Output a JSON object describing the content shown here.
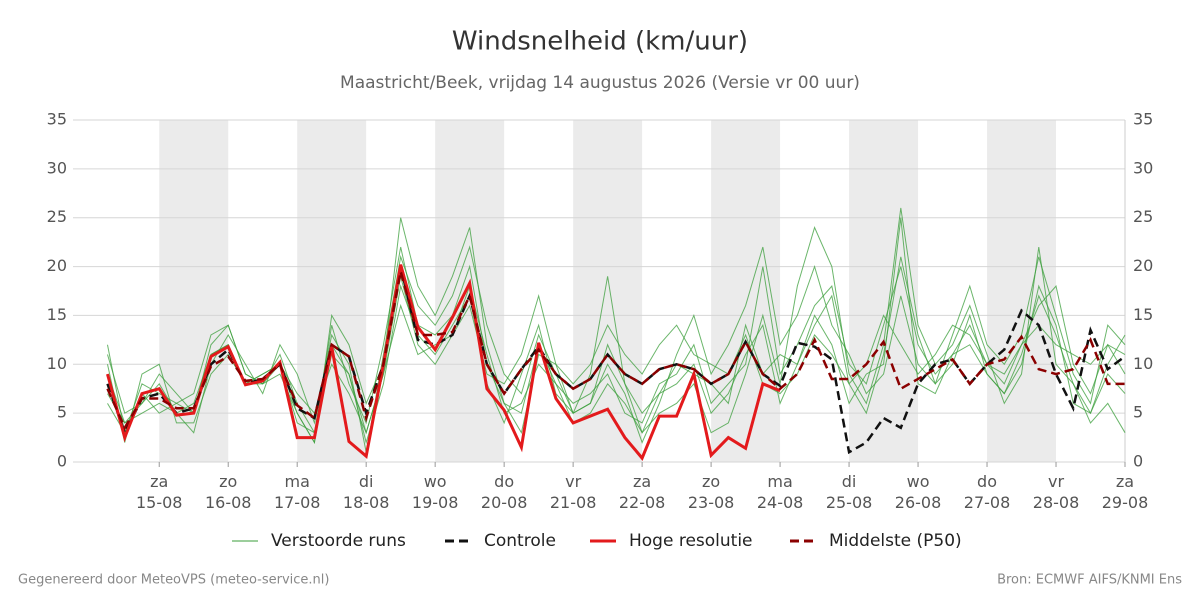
{
  "chart_data": {
    "type": "line",
    "title": "Windsnelheid (km/uur)",
    "subtitle": "Maastricht/Beek, vrijdag 14 augustus 2026 (Versie vr 00 uur)",
    "footer_left": "Gegenereerd door MeteoVPS (meteo-service.nl)",
    "footer_right": "Bron: ECMWF AIFS/KNMI Ens",
    "x": [
      14.25,
      14.5,
      14.75,
      15,
      15.25,
      15.5,
      15.75,
      16,
      16.25,
      16.5,
      16.75,
      17,
      17.25,
      17.5,
      17.75,
      18,
      18.25,
      18.5,
      18.75,
      19,
      19.25,
      19.5,
      19.75,
      20,
      20.25,
      20.5,
      20.75,
      21,
      21.25,
      21.5,
      21.75,
      22,
      22.25,
      22.5,
      22.75,
      23,
      23.25,
      23.5,
      23.75,
      24,
      24.25,
      24.5,
      24.75,
      25,
      25.25,
      25.5,
      25.75,
      26,
      26.25,
      26.5,
      26.75,
      27,
      27.25,
      27.5,
      27.75,
      28,
      28.25,
      28.5,
      28.75,
      29
    ],
    "xlim": [
      13.75,
      29
    ],
    "xticks": [
      {
        "value": 15,
        "label": "za\n15-08"
      },
      {
        "value": 16,
        "label": "zo\n16-08"
      },
      {
        "value": 17,
        "label": "ma\n17-08"
      },
      {
        "value": 18,
        "label": "di\n18-08"
      },
      {
        "value": 19,
        "label": "wo\n19-08"
      },
      {
        "value": 20,
        "label": "do\n20-08"
      },
      {
        "value": 21,
        "label": "vr\n21-08"
      },
      {
        "value": 22,
        "label": "za\n22-08"
      },
      {
        "value": 23,
        "label": "zo\n23-08"
      },
      {
        "value": 24,
        "label": "ma\n24-08"
      },
      {
        "value": 25,
        "label": "di\n25-08"
      },
      {
        "value": 26,
        "label": "wo\n26-08"
      },
      {
        "value": 27,
        "label": "do\n27-08"
      },
      {
        "value": 28,
        "label": "vr\n28-08"
      },
      {
        "value": 29,
        "label": "za\n29-08"
      }
    ],
    "ylim": [
      0,
      35
    ],
    "yticks": [
      0,
      5,
      10,
      15,
      20,
      25,
      30,
      35
    ],
    "grid": true,
    "ensemble": {
      "name": "Verstoorde runs",
      "color": "#3a9d3a",
      "members": [
        [
          12,
          3,
          8,
          7,
          6,
          5,
          12,
          14,
          9,
          8,
          11,
          6,
          3,
          14,
          8,
          4,
          12,
          22,
          14,
          13,
          15,
          20,
          10,
          6,
          5,
          12,
          8,
          6,
          7,
          9,
          5,
          4,
          8,
          9,
          12,
          6,
          8,
          10,
          20,
          9,
          12,
          16,
          18,
          10,
          8,
          14,
          20,
          12,
          9,
          11,
          14,
          10,
          8,
          12,
          16,
          18,
          10,
          7,
          12,
          9
        ],
        [
          7,
          4,
          6,
          8,
          5,
          6,
          11,
          12,
          8,
          9,
          10,
          4,
          3,
          11,
          9,
          2,
          8,
          18,
          13,
          11,
          14,
          17,
          8,
          4,
          9,
          14,
          7,
          5,
          6,
          12,
          8,
          5,
          7,
          10,
          9,
          8,
          6,
          14,
          9,
          11,
          10,
          15,
          12,
          6,
          9,
          10,
          25,
          8,
          7,
          11,
          12,
          9,
          7,
          10,
          18,
          14,
          6,
          5,
          10,
          13
        ],
        [
          10,
          2,
          9,
          10,
          4,
          4,
          9,
          11,
          8,
          8,
          9,
          5,
          2,
          15,
          12,
          6,
          10,
          25,
          18,
          15,
          19,
          24,
          12,
          6,
          3,
          11,
          10,
          5,
          9,
          19,
          8,
          3,
          5,
          6,
          8,
          3,
          4,
          9,
          15,
          8,
          18,
          24,
          20,
          9,
          6,
          12,
          26,
          14,
          10,
          12,
          16,
          11,
          6,
          9,
          22,
          10,
          8,
          4,
          6,
          3
        ],
        [
          6,
          3,
          7,
          5,
          6,
          7,
          13,
          14,
          9,
          8,
          10,
          7,
          5,
          10,
          7,
          3,
          9,
          16,
          11,
          12,
          13,
          16,
          9,
          8,
          11,
          17,
          10,
          8,
          10,
          14,
          11,
          9,
          12,
          14,
          11,
          10,
          9,
          13,
          8,
          7,
          9,
          13,
          11,
          8,
          10,
          15,
          12,
          9,
          11,
          14,
          13,
          10,
          9,
          12,
          14,
          12,
          11,
          10,
          12,
          11
        ],
        [
          9,
          4,
          5,
          6,
          5,
          3,
          10,
          13,
          10,
          7,
          12,
          9,
          4,
          13,
          10,
          1,
          11,
          21,
          16,
          14,
          17,
          22,
          14,
          9,
          7,
          13,
          9,
          5,
          6,
          10,
          7,
          2,
          6,
          11,
          15,
          9,
          12,
          16,
          22,
          12,
          15,
          20,
          14,
          11,
          7,
          9,
          17,
          10,
          8,
          13,
          18,
          12,
          10,
          13,
          21,
          15,
          9,
          6,
          14,
          12
        ],
        [
          11,
          5,
          6,
          9,
          7,
          5,
          11,
          12,
          8,
          9,
          10,
          5,
          2,
          12,
          9,
          3,
          9,
          19,
          12,
          10,
          13,
          18,
          11,
          5,
          6,
          10,
          8,
          4,
          5,
          8,
          6,
          3,
          7,
          8,
          10,
          5,
          7,
          11,
          14,
          6,
          10,
          14,
          17,
          8,
          5,
          11,
          21,
          13,
          8,
          10,
          15,
          9,
          7,
          11,
          17,
          13,
          8,
          5,
          9,
          7
        ]
      ]
    },
    "series": [
      {
        "name": "Controle",
        "color": "#111111",
        "dashed": true,
        "values": [
          8,
          3,
          6.5,
          7,
          5,
          5.5,
          10,
          11.5,
          8,
          8.5,
          10,
          5.5,
          4.5,
          12,
          10.8,
          5,
          10,
          20,
          12.5,
          12,
          13,
          17,
          10,
          7,
          9.5,
          11.8,
          9,
          7.5,
          8.5,
          11,
          9,
          8,
          9.5,
          10,
          9.5,
          8,
          9,
          12.3,
          9,
          7.8,
          12.2,
          11.8,
          10.5,
          1,
          2,
          4.5,
          3.5,
          8,
          10,
          10.5,
          8,
          10,
          11.5,
          15.5,
          14,
          9,
          5.5,
          13.5,
          9.5,
          10.8
        ]
      },
      {
        "name": "Hoge resolutie",
        "color": "#e31a1c",
        "dashed": false,
        "values": [
          9,
          2.5,
          7,
          7.5,
          4.8,
          5,
          10.8,
          11.8,
          7.9,
          8.3,
          10.2,
          2.5,
          2.5,
          11.8,
          2.1,
          0.6,
          10,
          20.2,
          13.8,
          11.5,
          14.8,
          18.3,
          7.5,
          5.3,
          1.5,
          12.2,
          6.5,
          4,
          4.7,
          5.4,
          2.5,
          0.4,
          4.7,
          4.7,
          9,
          0.7,
          2.5,
          1.4,
          8,
          7.3,
          null,
          null,
          null,
          null,
          null,
          null,
          null,
          null,
          null,
          null,
          null,
          null,
          null,
          null,
          null,
          null,
          null,
          null,
          null,
          null
        ]
      },
      {
        "name": "Middelste (P50)",
        "color": "#8b0000",
        "dashed": true,
        "values": [
          7.5,
          3.5,
          6.5,
          6.5,
          5.5,
          5.5,
          9.8,
          10.8,
          8.3,
          8.5,
          10,
          5.8,
          4.5,
          12,
          10.8,
          4.5,
          10,
          19.5,
          13,
          13,
          13.3,
          17,
          10,
          7,
          9.5,
          11.5,
          9,
          7.5,
          8.5,
          11,
          9,
          8,
          9.5,
          10,
          9.5,
          8,
          9,
          12.3,
          9,
          7.5,
          9,
          12.5,
          8.5,
          8.5,
          10,
          12.3,
          7.5,
          8.5,
          9.5,
          10.5,
          8,
          10,
          10.5,
          12.8,
          9.5,
          9,
          9.5,
          12.5,
          8,
          8
        ]
      }
    ]
  }
}
